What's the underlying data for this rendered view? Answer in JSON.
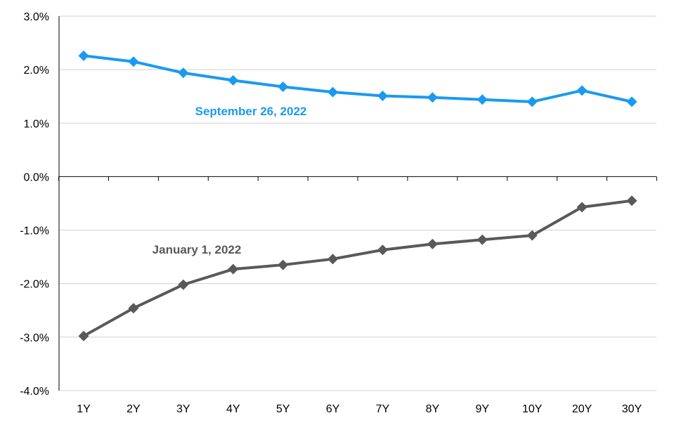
{
  "chart_data": {
    "type": "line",
    "categories": [
      "1Y",
      "2Y",
      "3Y",
      "4Y",
      "5Y",
      "6Y",
      "7Y",
      "8Y",
      "9Y",
      "10Y",
      "20Y",
      "30Y"
    ],
    "series": [
      {
        "name": "September 26, 2022",
        "color": "#1a9af0",
        "values": [
          2.26,
          2.15,
          1.94,
          1.8,
          1.68,
          1.58,
          1.51,
          1.48,
          1.44,
          1.4,
          1.61,
          1.4
        ]
      },
      {
        "name": "January 1, 2022",
        "color": "#595959",
        "values": [
          -2.98,
          -2.46,
          -2.02,
          -1.73,
          -1.65,
          -1.54,
          -1.37,
          -1.26,
          -1.18,
          -1.1,
          -0.57,
          -0.45
        ]
      }
    ],
    "y_ticks": [
      "3.0%",
      "2.0%",
      "1.0%",
      "0.0%",
      "-1.0%",
      "-2.0%",
      "-3.0%",
      "-4.0%"
    ],
    "ylim": [
      -4,
      3
    ],
    "grid": true,
    "title": "",
    "xlabel": "",
    "ylabel": ""
  }
}
